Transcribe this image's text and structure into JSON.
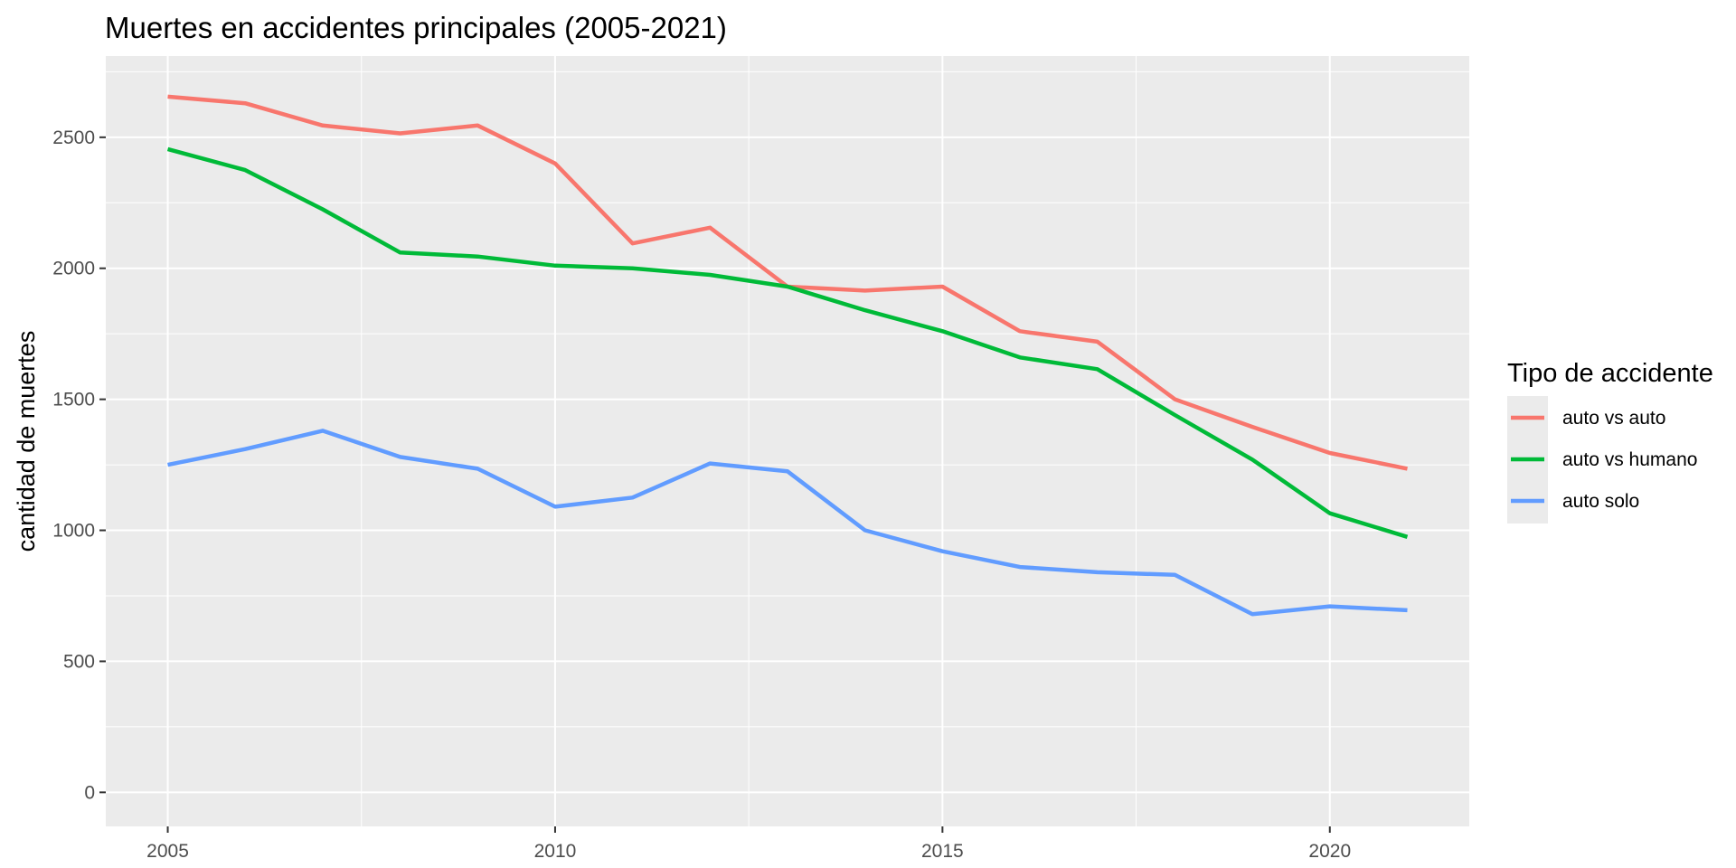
{
  "chart_data": {
    "type": "line",
    "title": "Muertes en accidentes principales (2005-2021)",
    "xlabel": "",
    "ylabel": "cantidad de muertes",
    "x": [
      2005,
      2006,
      2007,
      2008,
      2009,
      2010,
      2011,
      2012,
      2013,
      2014,
      2015,
      2016,
      2017,
      2018,
      2019,
      2020,
      2021
    ],
    "xlim": [
      2004.2,
      2021.8
    ],
    "ylim": [
      -130,
      2810
    ],
    "x_ticks": [
      2005,
      2010,
      2015,
      2020
    ],
    "y_ticks": [
      0,
      500,
      1000,
      1500,
      2000,
      2500
    ],
    "grid": true,
    "legend_title": "Tipo de accidente",
    "legend_position": "right",
    "series": [
      {
        "name": "auto vs auto",
        "color": "#F8766D",
        "values": [
          2655,
          2630,
          2545,
          2515,
          2545,
          2400,
          2095,
          2155,
          1930,
          1915,
          1930,
          1760,
          1720,
          1500,
          1395,
          1295,
          1235
        ]
      },
      {
        "name": "auto vs humano",
        "color": "#00BA38",
        "values": [
          2455,
          2375,
          2225,
          2060,
          2045,
          2010,
          2000,
          1975,
          1930,
          1840,
          1760,
          1660,
          1615,
          1440,
          1270,
          1065,
          975
        ]
      },
      {
        "name": "auto solo",
        "color": "#619CFF",
        "values": [
          1250,
          1310,
          1380,
          1280,
          1235,
          1090,
          1125,
          1255,
          1225,
          1000,
          920,
          860,
          840,
          830,
          680,
          710,
          695
        ]
      }
    ]
  }
}
